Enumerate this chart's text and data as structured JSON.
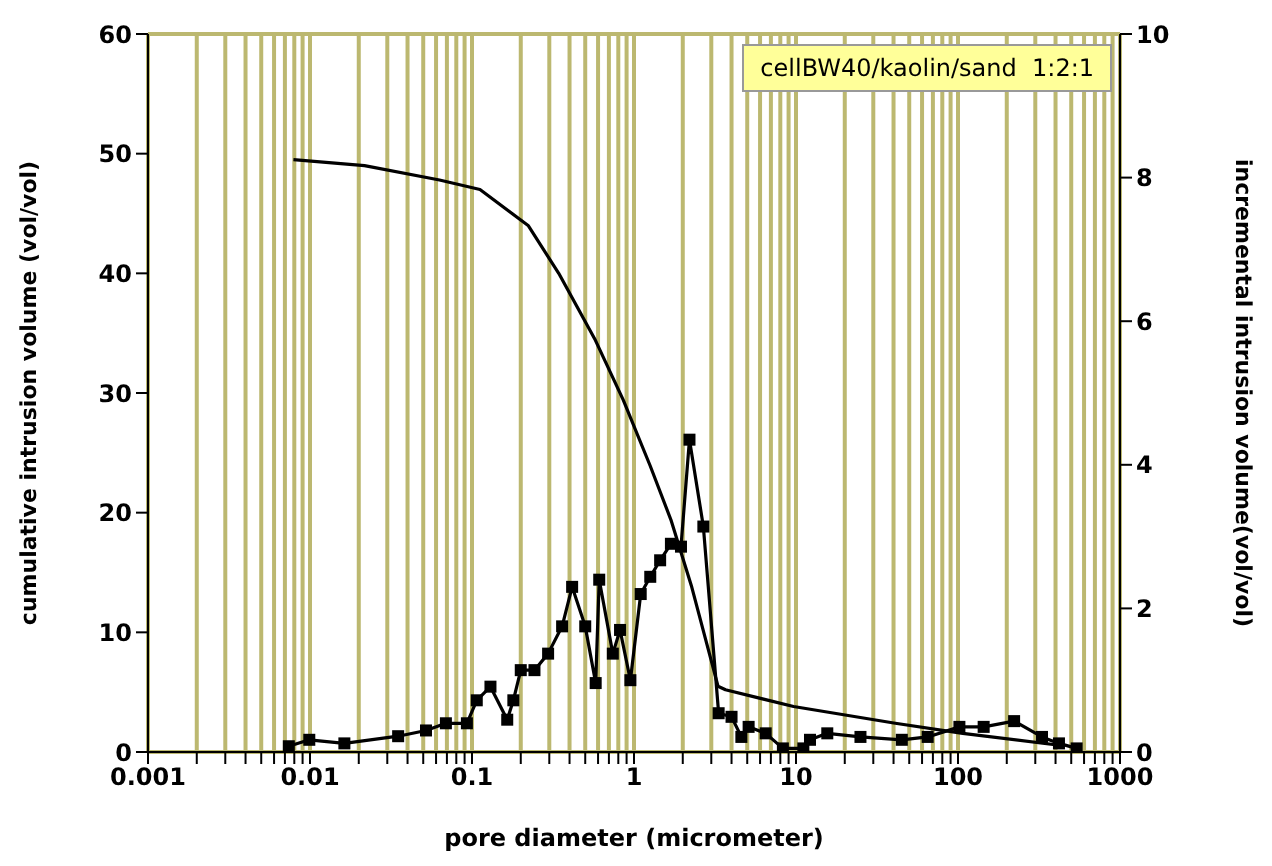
{
  "chart_data": {
    "type": "line",
    "xlabel": "pore diameter (micrometer)",
    "ylabel": "cumulative intrusion volume (vol/vol)",
    "y2label": "incremental intrusion volume(vol/vol)",
    "annotations": [
      "cellBW40/kaolin/sand  1:2:1"
    ],
    "log": "x",
    "grid": true,
    "xlim": [
      0.001,
      1000
    ],
    "ylim": [
      0,
      60
    ],
    "y2lim": [
      0,
      10
    ],
    "xticks": [
      0.001,
      {
        "value": 0.002,
        "label": null
      },
      {
        "value": 0.003,
        "label": null
      },
      {
        "value": 0.004,
        "label": null
      },
      {
        "value": 0.005,
        "label": null
      },
      {
        "value": 0.006,
        "label": null
      },
      {
        "value": 0.007,
        "label": null
      },
      {
        "value": 0.008,
        "label": null
      },
      {
        "value": 0.009,
        "label": null
      },
      0.01,
      {
        "value": 0.02,
        "label": null
      },
      {
        "value": 0.03,
        "label": null
      },
      {
        "value": 0.04,
        "label": null
      },
      {
        "value": 0.05,
        "label": null
      },
      {
        "value": 0.06,
        "label": null
      },
      {
        "value": 0.07,
        "label": null
      },
      {
        "value": 0.08,
        "label": null
      },
      {
        "value": 0.09,
        "label": null
      },
      0.1,
      {
        "value": 0.2,
        "label": null
      },
      {
        "value": 0.3,
        "label": null
      },
      {
        "value": 0.4,
        "label": null
      },
      {
        "value": 0.5,
        "label": null
      },
      {
        "value": 0.6,
        "label": null
      },
      {
        "value": 0.7,
        "label": null
      },
      {
        "value": 0.8,
        "label": null
      },
      {
        "value": 0.9,
        "label": null
      },
      1,
      {
        "value": 2,
        "label": null
      },
      {
        "value": 3,
        "label": null
      },
      {
        "value": 4,
        "label": null
      },
      {
        "value": 5,
        "label": null
      },
      {
        "value": 6,
        "label": null
      },
      {
        "value": 7,
        "label": null
      },
      {
        "value": 8,
        "label": null
      },
      {
        "value": 9,
        "label": null
      },
      10,
      {
        "value": 20,
        "label": null
      },
      {
        "value": 30,
        "label": null
      },
      {
        "value": 40,
        "label": null
      },
      {
        "value": 50,
        "label": null
      },
      {
        "value": 60,
        "label": null
      },
      {
        "value": 70,
        "label": null
      },
      {
        "value": 80,
        "label": null
      },
      {
        "value": 90,
        "label": null
      },
      100,
      {
        "value": 200,
        "label": null
      },
      {
        "value": 300,
        "label": null
      },
      {
        "value": 400,
        "label": null
      },
      {
        "value": 500,
        "label": null
      },
      {
        "value": 600,
        "label": null
      },
      {
        "value": 700,
        "label": null
      },
      {
        "value": 800,
        "label": null
      },
      {
        "value": 900,
        "label": null
      },
      1000
    ],
    "yticks": [
      0,
      10,
      20,
      30,
      40,
      50,
      60
    ],
    "y2ticks": [
      0,
      2,
      4,
      6,
      8,
      10
    ],
    "series": [
      {
        "color": "#000000",
        "marker": "none",
        "x": [
          0.0079,
          0.0217,
          0.063,
          0.112,
          0.222,
          0.343,
          0.578,
          0.859,
          1.26,
          1.69,
          2.26,
          3.3,
          3.67,
          9.66,
          41,
          107,
          459
        ],
        "values": [
          49.5,
          49.0,
          47.8,
          47.0,
          44.0,
          40.0,
          34.4,
          29.4,
          23.9,
          19.4,
          13.9,
          5.5,
          5.2,
          3.8,
          2.4,
          1.55,
          0.5
        ]
      },
      {
        "color": "#000000",
        "marker": "square",
        "axis": "y2",
        "x": [
          0.0074,
          0.0099,
          0.0163,
          0.035,
          0.052,
          0.069,
          0.093,
          0.107,
          0.13,
          0.165,
          0.18,
          0.2,
          0.243,
          0.295,
          0.36,
          0.415,
          0.5,
          0.58,
          0.61,
          0.74,
          0.82,
          0.95,
          1.1,
          1.26,
          1.45,
          1.69,
          1.95,
          2.2,
          2.68,
          3.33,
          4.0,
          4.6,
          5.1,
          6.5,
          8.3,
          11.1,
          12.2,
          15.6,
          25,
          45,
          65,
          102,
          144,
          222,
          330,
          420,
          540
        ],
        "values": [
          0.08,
          0.17,
          0.12,
          0.22,
          0.3,
          0.4,
          0.4,
          0.72,
          0.91,
          0.45,
          0.72,
          1.14,
          1.14,
          1.37,
          1.75,
          2.3,
          1.75,
          0.96,
          2.4,
          1.37,
          1.7,
          1.0,
          2.2,
          2.44,
          2.67,
          2.9,
          2.86,
          4.35,
          3.14,
          0.54,
          0.49,
          0.21,
          0.35,
          0.26,
          0.05,
          0.05,
          0.17,
          0.26,
          0.21,
          0.17,
          0.21,
          0.35,
          0.35,
          0.43,
          0.21,
          0.12,
          0.05
        ]
      }
    ]
  }
}
